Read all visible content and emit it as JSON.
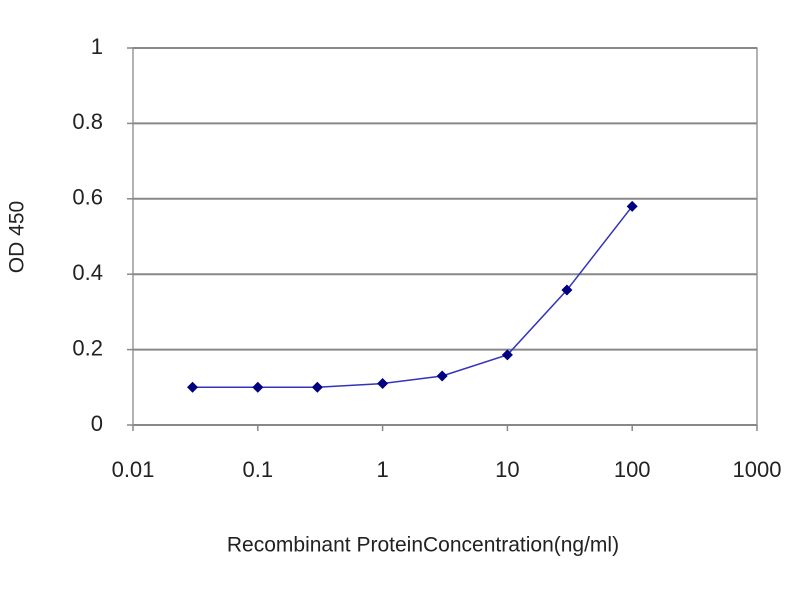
{
  "chart_data": {
    "type": "line",
    "x_label": "Recombinant ProteinConcentration(ng/ml)",
    "y_label": "OD 450",
    "x": [
      0.03,
      0.1,
      0.3,
      1,
      3,
      10,
      30,
      100
    ],
    "series": [
      {
        "color": "#000080",
        "values": [
          0.1,
          0.1,
          0.1,
          0.11,
          0.13,
          0.186,
          0.358,
          0.58
        ]
      }
    ],
    "xscale": "log",
    "xlim": [
      0.01,
      1000
    ],
    "xticks": [
      0.01,
      0.1,
      1,
      10,
      100,
      1000
    ],
    "ylim": [
      0,
      1
    ],
    "yticks": [
      0,
      0.2,
      0.4,
      0.6,
      0.8,
      1
    ],
    "grid": true
  }
}
